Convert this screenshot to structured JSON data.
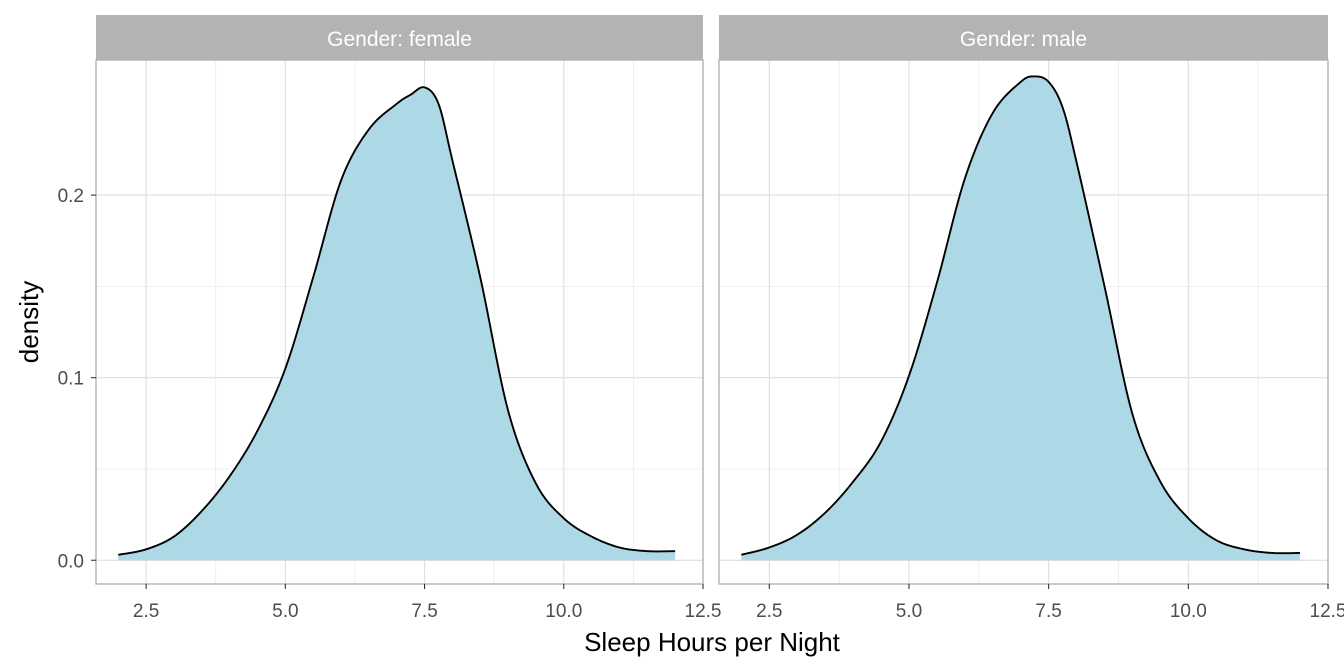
{
  "chart_data": {
    "type": "area",
    "subtype": "faceted density plot",
    "xlabel": "Sleep Hours per Night",
    "ylabel": "density",
    "xlim": [
      1.6,
      12.5
    ],
    "ylim": [
      -0.013,
      0.274
    ],
    "x_ticks": [
      2.5,
      5.0,
      7.5,
      10.0,
      12.5
    ],
    "x_tick_labels": [
      "2.5",
      "5.0",
      "7.5",
      "10.0",
      "12.5"
    ],
    "y_ticks": [
      0.0,
      0.1,
      0.2
    ],
    "y_tick_labels": [
      "0.0",
      "0.1",
      "0.2"
    ],
    "grid": true,
    "fill_color": "#add8e6",
    "line_color": "#000000",
    "strip_color": "#b3b3b3",
    "facets": [
      {
        "strip_label": "Gender: female",
        "x": [
          2.0,
          2.5,
          3.0,
          3.5,
          4.0,
          4.5,
          5.0,
          5.5,
          6.0,
          6.5,
          7.0,
          7.25,
          7.5,
          7.75,
          8.0,
          8.5,
          9.0,
          9.5,
          10.0,
          10.5,
          11.0,
          11.5,
          12.0
        ],
        "y": [
          0.003,
          0.006,
          0.013,
          0.027,
          0.046,
          0.071,
          0.105,
          0.155,
          0.208,
          0.236,
          0.25,
          0.255,
          0.259,
          0.25,
          0.219,
          0.155,
          0.082,
          0.042,
          0.023,
          0.013,
          0.007,
          0.005,
          0.005
        ]
      },
      {
        "strip_label": "Gender: male",
        "x": [
          2.0,
          2.5,
          3.0,
          3.5,
          4.0,
          4.5,
          5.0,
          5.5,
          6.0,
          6.5,
          7.0,
          7.25,
          7.5,
          7.75,
          8.0,
          8.5,
          9.0,
          9.5,
          10.0,
          10.5,
          11.0,
          11.5,
          12.0
        ],
        "y": [
          0.003,
          0.007,
          0.014,
          0.026,
          0.043,
          0.065,
          0.101,
          0.152,
          0.209,
          0.245,
          0.262,
          0.265,
          0.262,
          0.248,
          0.218,
          0.15,
          0.08,
          0.043,
          0.023,
          0.011,
          0.006,
          0.004,
          0.004
        ]
      }
    ]
  }
}
